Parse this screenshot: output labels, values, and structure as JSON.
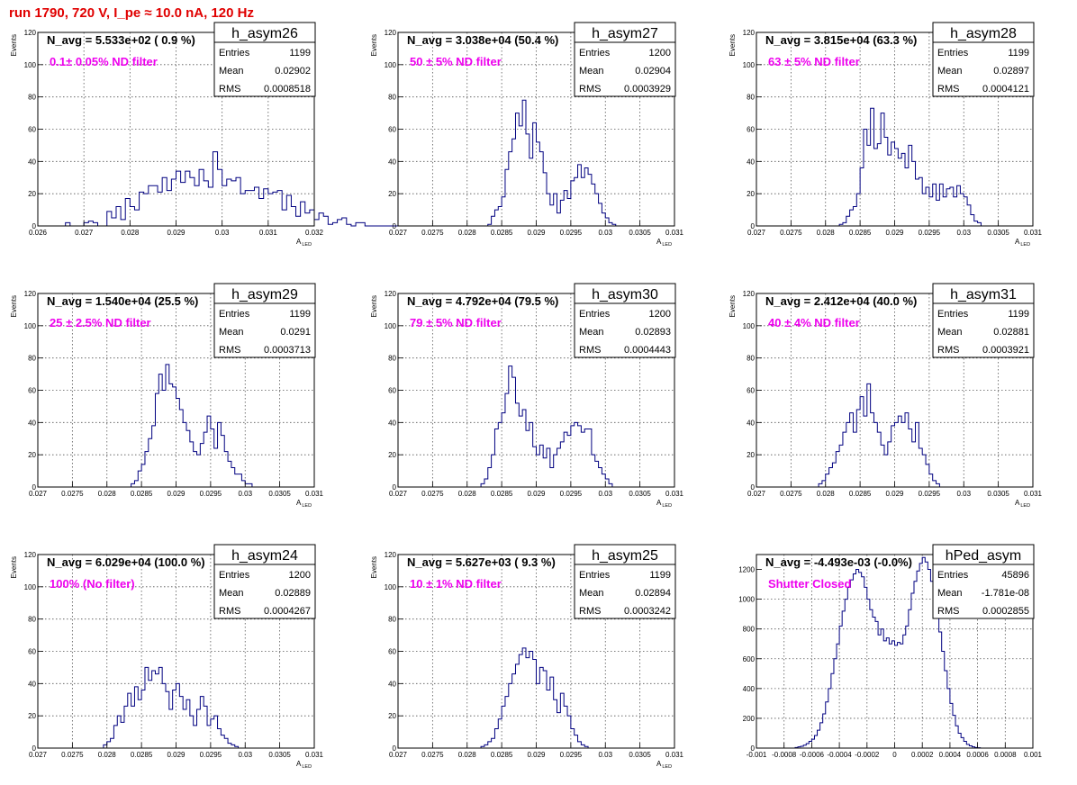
{
  "run_title": "run 1790,   720 V, I_pe ≈ 10.0 nA, 120 Hz",
  "colors": {
    "title": "#e00000",
    "filter_label": "#ee00ee",
    "hist_line": "#000080",
    "grid": "#555555"
  },
  "stats_labels": {
    "entries": "Entries",
    "mean": "Mean",
    "rms": "RMS"
  },
  "chart_data": [
    {
      "type": "bar",
      "name": "h_asym26",
      "navg": "N_avg = 5.533e+02 ( 0.9 %)",
      "label": "0.1± 0.05% ND filter",
      "stats": {
        "entries": "1199",
        "mean": "0.02902",
        "rms": "0.0008518"
      },
      "xlabel": "A",
      "xlabel_sub": "LED",
      "ylabel": "Events",
      "xlim": [
        0.026,
        0.032
      ],
      "ylim": [
        0,
        120
      ],
      "xticks": [
        0.026,
        0.027,
        0.028,
        0.029,
        0.03,
        0.031,
        0.032
      ],
      "xtick_labels": [
        "0.026",
        "0.027",
        "0.028",
        "0.029",
        "0.03",
        "0.031",
        "0.032"
      ],
      "yticks": [
        0,
        20,
        40,
        60,
        80,
        100,
        120
      ],
      "ytick_labels": [
        "0",
        "20",
        "40",
        "60",
        "80",
        "100",
        "120"
      ],
      "bin_start": 0.0265,
      "bin_width": 0.0001,
      "counts": [
        0,
        2,
        0,
        0,
        0,
        2,
        3,
        2,
        0,
        0,
        9,
        5,
        12,
        4,
        17,
        12,
        10,
        21,
        20,
        25,
        25,
        21,
        30,
        22,
        29,
        34,
        27,
        34,
        30,
        25,
        35,
        28,
        24,
        46,
        35,
        25,
        29,
        28,
        30,
        20,
        22,
        22,
        24,
        17,
        23,
        20,
        21,
        22,
        10,
        19,
        12,
        6,
        15,
        8,
        10,
        4,
        8,
        6,
        1,
        2,
        4,
        5,
        1,
        0,
        2,
        2,
        0,
        0,
        0,
        0,
        0,
        0,
        0,
        0,
        0,
        0
      ]
    },
    {
      "type": "bar",
      "name": "h_asym27",
      "navg": "N_avg = 3.038e+04 (50.4 %)",
      "label": "50 ± 5% ND filter",
      "stats": {
        "entries": "1200",
        "mean": "0.02904",
        "rms": "0.0003929"
      },
      "xlabel": "A",
      "xlabel_sub": "LED",
      "ylabel": "Events",
      "xlim": [
        0.027,
        0.031
      ],
      "ylim": [
        0,
        120
      ],
      "xticks": [
        0.027,
        0.0275,
        0.028,
        0.0285,
        0.029,
        0.0295,
        0.03,
        0.0305,
        0.031
      ],
      "xtick_labels": [
        "0.027",
        "0.0275",
        "0.028",
        "0.0285",
        "0.029",
        "0.0295",
        "0.03",
        "0.0305",
        "0.031"
      ],
      "yticks": [
        0,
        20,
        40,
        60,
        80,
        100,
        120
      ],
      "ytick_labels": [
        "0",
        "20",
        "40",
        "60",
        "80",
        "100",
        "120"
      ],
      "bin_start": 0.0283,
      "bin_width": 5e-05,
      "counts": [
        1,
        6,
        10,
        12,
        18,
        35,
        46,
        54,
        70,
        62,
        78,
        57,
        42,
        64,
        52,
        46,
        33,
        20,
        13,
        20,
        8,
        16,
        22,
        17,
        28,
        30,
        38,
        30,
        36,
        32,
        26,
        20,
        14,
        8,
        5,
        2,
        1
      ]
    },
    {
      "type": "bar",
      "name": "h_asym28",
      "navg": "N_avg = 3.815e+04 (63.3 %)",
      "label": "63 ± 5% ND filter",
      "stats": {
        "entries": "1199",
        "mean": "0.02897",
        "rms": "0.0004121"
      },
      "xlabel": "A",
      "xlabel_sub": "LED",
      "ylabel": "Events",
      "xlim": [
        0.027,
        0.031
      ],
      "ylim": [
        0,
        120
      ],
      "xticks": [
        0.027,
        0.0275,
        0.028,
        0.0285,
        0.029,
        0.0295,
        0.03,
        0.0305,
        0.031
      ],
      "xtick_labels": [
        "0.027",
        "0.0275",
        "0.028",
        "0.0285",
        "0.029",
        "0.0295",
        "0.03",
        "0.0305",
        "0.031"
      ],
      "yticks": [
        0,
        20,
        40,
        60,
        80,
        100,
        120
      ],
      "ytick_labels": [
        "0",
        "20",
        "40",
        "60",
        "80",
        "100",
        "120"
      ],
      "bin_start": 0.0282,
      "bin_width": 5e-05,
      "counts": [
        1,
        2,
        6,
        10,
        12,
        20,
        36,
        60,
        50,
        73,
        48,
        51,
        70,
        55,
        44,
        52,
        48,
        42,
        45,
        36,
        50,
        40,
        29,
        30,
        20,
        24,
        18,
        26,
        16,
        26,
        18,
        23,
        24,
        18,
        25,
        20,
        18,
        13,
        7,
        3,
        2
      ]
    },
    {
      "type": "bar",
      "name": "h_asym29",
      "navg": "N_avg = 1.540e+04 (25.5 %)",
      "label": "25 ± 2.5% ND filter",
      "stats": {
        "entries": "1199",
        "mean": "0.0291",
        "rms": "0.0003713"
      },
      "xlabel": "A",
      "xlabel_sub": "LED",
      "ylabel": "Events",
      "xlim": [
        0.027,
        0.031
      ],
      "ylim": [
        0,
        120
      ],
      "xticks": [
        0.027,
        0.0275,
        0.028,
        0.0285,
        0.029,
        0.0295,
        0.03,
        0.0305,
        0.031
      ],
      "xtick_labels": [
        "0.027",
        "0.0275",
        "0.028",
        "0.0285",
        "0.029",
        "0.0295",
        "0.03",
        "0.0305",
        "0.031"
      ],
      "yticks": [
        0,
        20,
        40,
        60,
        80,
        100,
        120
      ],
      "ytick_labels": [
        "0",
        "20",
        "40",
        "60",
        "80",
        "100",
        "120"
      ],
      "bin_start": 0.02835,
      "bin_width": 5e-05,
      "counts": [
        2,
        4,
        10,
        14,
        22,
        30,
        38,
        58,
        70,
        60,
        76,
        64,
        62,
        55,
        48,
        40,
        35,
        28,
        22,
        20,
        27,
        34,
        44,
        36,
        24,
        40,
        32,
        22,
        16,
        12,
        8,
        8,
        4,
        2,
        2
      ]
    },
    {
      "type": "bar",
      "name": "h_asym30",
      "navg": "N_avg = 4.792e+04 (79.5 %)",
      "label": "79 ± 5% ND filter",
      "stats": {
        "entries": "1200",
        "mean": "0.02893",
        "rms": "0.0004443"
      },
      "xlabel": "A",
      "xlabel_sub": "LED",
      "ylabel": "Events",
      "xlim": [
        0.027,
        0.031
      ],
      "ylim": [
        0,
        120
      ],
      "xticks": [
        0.027,
        0.0275,
        0.028,
        0.0285,
        0.029,
        0.0295,
        0.03,
        0.0305,
        0.031
      ],
      "xtick_labels": [
        "0.027",
        "0.0275",
        "0.028",
        "0.0285",
        "0.029",
        "0.0295",
        "0.03",
        "0.0305",
        "0.031"
      ],
      "yticks": [
        0,
        20,
        40,
        60,
        80,
        100,
        120
      ],
      "ytick_labels": [
        "0",
        "20",
        "40",
        "60",
        "80",
        "100",
        "120"
      ],
      "bin_start": 0.0282,
      "bin_width": 5e-05,
      "counts": [
        2,
        5,
        12,
        20,
        36,
        40,
        46,
        58,
        75,
        68,
        52,
        44,
        48,
        35,
        40,
        25,
        20,
        26,
        18,
        24,
        12,
        20,
        24,
        28,
        34,
        32,
        38,
        40,
        38,
        34,
        36,
        36,
        20,
        16,
        12,
        8,
        5,
        2
      ]
    },
    {
      "type": "bar",
      "name": "h_asym31",
      "navg": "N_avg = 2.412e+04 (40.0 %)",
      "label": "40 ± 4% ND filter",
      "stats": {
        "entries": "1199",
        "mean": "0.02881",
        "rms": "0.0003921"
      },
      "xlabel": "A",
      "xlabel_sub": "LED",
      "ylabel": "Events",
      "xlim": [
        0.027,
        0.031
      ],
      "ylim": [
        0,
        120
      ],
      "xticks": [
        0.027,
        0.0275,
        0.028,
        0.0285,
        0.029,
        0.0295,
        0.03,
        0.0305,
        0.031
      ],
      "xtick_labels": [
        "0.027",
        "0.0275",
        "0.028",
        "0.0285",
        "0.029",
        "0.0295",
        "0.03",
        "0.0305",
        "0.031"
      ],
      "yticks": [
        0,
        20,
        40,
        60,
        80,
        100,
        120
      ],
      "ytick_labels": [
        "0",
        "20",
        "40",
        "60",
        "80",
        "100",
        "120"
      ],
      "bin_start": 0.0279,
      "bin_width": 5e-05,
      "counts": [
        2,
        4,
        8,
        12,
        15,
        22,
        26,
        34,
        40,
        46,
        34,
        48,
        56,
        44,
        64,
        46,
        40,
        34,
        26,
        20,
        28,
        38,
        40,
        44,
        40,
        46,
        36,
        28,
        40,
        24,
        20,
        14,
        8,
        4,
        2
      ]
    },
    {
      "type": "bar",
      "name": "h_asym24",
      "navg": "N_avg = 6.029e+04 (100.0 %)",
      "label": "100% (No filter)",
      "stats": {
        "entries": "1200",
        "mean": "0.02889",
        "rms": "0.0004267"
      },
      "xlabel": "A",
      "xlabel_sub": "LED",
      "ylabel": "Events",
      "xlim": [
        0.027,
        0.031
      ],
      "ylim": [
        0,
        120
      ],
      "xticks": [
        0.027,
        0.0275,
        0.028,
        0.0285,
        0.029,
        0.0295,
        0.03,
        0.0305,
        0.031
      ],
      "xtick_labels": [
        "0.027",
        "0.0275",
        "0.028",
        "0.0285",
        "0.029",
        "0.0295",
        "0.03",
        "0.0305",
        "0.031"
      ],
      "yticks": [
        0,
        20,
        40,
        60,
        80,
        100,
        120
      ],
      "ytick_labels": [
        "0",
        "20",
        "40",
        "60",
        "80",
        "100",
        "120"
      ],
      "bin_start": 0.02795,
      "bin_width": 5e-05,
      "counts": [
        2,
        4,
        6,
        14,
        20,
        16,
        26,
        34,
        26,
        38,
        30,
        36,
        50,
        42,
        48,
        46,
        50,
        40,
        35,
        24,
        36,
        40,
        32,
        24,
        30,
        20,
        14,
        24,
        32,
        26,
        14,
        18,
        20,
        12,
        8,
        6,
        3,
        2,
        1
      ]
    },
    {
      "type": "bar",
      "name": "h_asym25",
      "navg": "N_avg = 5.627e+03 ( 9.3 %)",
      "label": "10 ± 1% ND filter",
      "stats": {
        "entries": "1199",
        "mean": "0.02894",
        "rms": "0.0003242"
      },
      "xlabel": "A",
      "xlabel_sub": "LED",
      "ylabel": "Events",
      "xlim": [
        0.027,
        0.031
      ],
      "ylim": [
        0,
        120
      ],
      "xticks": [
        0.027,
        0.0275,
        0.028,
        0.0285,
        0.029,
        0.0295,
        0.03,
        0.0305,
        0.031
      ],
      "xtick_labels": [
        "0.027",
        "0.0275",
        "0.028",
        "0.0285",
        "0.029",
        "0.0295",
        "0.03",
        "0.0305",
        "0.031"
      ],
      "yticks": [
        0,
        20,
        40,
        60,
        80,
        100,
        120
      ],
      "ytick_labels": [
        "0",
        "20",
        "40",
        "60",
        "80",
        "100",
        "120"
      ],
      "bin_start": 0.0282,
      "bin_width": 5e-05,
      "counts": [
        1,
        2,
        4,
        6,
        12,
        18,
        26,
        32,
        40,
        46,
        52,
        58,
        62,
        56,
        60,
        55,
        40,
        50,
        48,
        36,
        44,
        30,
        22,
        34,
        26,
        20,
        12,
        8,
        4,
        2,
        1
      ]
    },
    {
      "type": "bar",
      "name": "hPed_asym",
      "navg": "N_avg = -4.493e-03 (-0.0%)",
      "label": "Shutter Closed",
      "stats": {
        "entries": "45896",
        "mean": "-1.781e-08",
        "rms": "0.0002855"
      },
      "xlabel": "",
      "xlabel_sub": "",
      "ylabel": "",
      "xlim": [
        -0.001,
        0.001
      ],
      "ylim": [
        0,
        1300
      ],
      "xticks": [
        -0.001,
        -0.0008,
        -0.0006,
        -0.0004,
        -0.0002,
        0,
        0.0002,
        0.0004,
        0.0006,
        0.0008,
        0.001
      ],
      "xtick_labels": [
        "-0.001",
        "-0.0008",
        "-0.0006",
        "-0.0004",
        "-0.0002",
        "0",
        "0.0002",
        "0.0004",
        "0.0006",
        "0.0008",
        "0.001"
      ],
      "yticks": [
        0,
        200,
        400,
        600,
        800,
        1000,
        1200
      ],
      "ytick_labels": [
        "0",
        "200",
        "400",
        "600",
        "800",
        "1000",
        "1200"
      ],
      "bin_start": -0.00072,
      "bin_width": 2e-05,
      "counts": [
        4,
        8,
        12,
        20,
        30,
        45,
        60,
        85,
        120,
        170,
        230,
        310,
        400,
        500,
        600,
        700,
        820,
        920,
        1000,
        1080,
        1130,
        1170,
        1200,
        1180,
        1150,
        1080,
        1000,
        930,
        880,
        850,
        760,
        800,
        720,
        740,
        700,
        720,
        690,
        710,
        700,
        760,
        820,
        930,
        1040,
        1120,
        1190,
        1240,
        1280,
        1250,
        1200,
        1120,
        1010,
        900,
        780,
        650,
        520,
        400,
        300,
        220,
        150,
        100,
        70,
        45,
        25,
        15,
        8,
        4,
        2
      ]
    }
  ]
}
